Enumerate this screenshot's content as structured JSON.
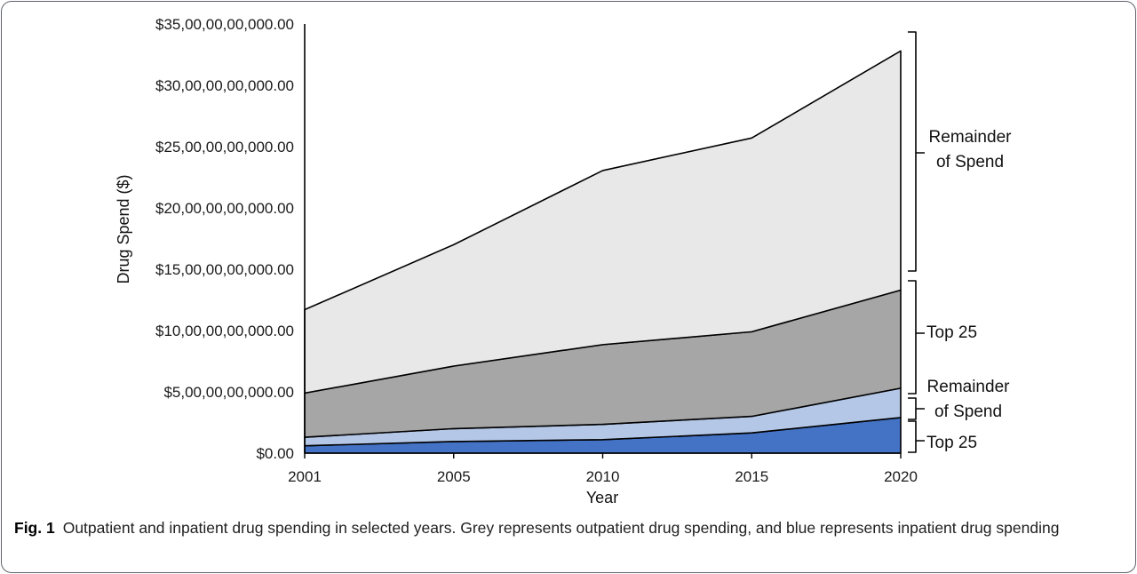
{
  "figure": {
    "caption_bold": "Fig. 1",
    "caption_text": "Outpatient and inpatient drug spending in selected years. Grey represents outpatient drug spending, and blue represents inpatient drug spending"
  },
  "chart_data": {
    "type": "area",
    "stacked": true,
    "title": "",
    "xlabel": "Year",
    "ylabel": "Drug Spend ($)",
    "categories": [
      "2001",
      "2005",
      "2010",
      "2015",
      "2020"
    ],
    "x_axis_style": "categorical, equally spaced",
    "values_unit": "billions of dollars (labels shown with Indian digit grouping)",
    "ylim": [
      0,
      35
    ],
    "ytick_step_billions": 5,
    "grid": false,
    "legend_position": "right-side brackets",
    "yticks": [
      "$0.00",
      "$5,00,00,00,000.00",
      "$10,00,00,00,000.00",
      "$15,00,00,00,000.00",
      "$20,00,00,00,000.00",
      "$25,00,00,00,000.00",
      "$30,00,00,00,000.00",
      "$35,00,00,00,000.00"
    ],
    "series": [
      {
        "name": "Top 25",
        "group": "inpatient",
        "color": "#4472c4",
        "values": [
          0.6,
          0.95,
          1.1,
          1.65,
          2.9
        ]
      },
      {
        "name": "Remainder of Spend",
        "group": "inpatient",
        "color": "#b4c7e7",
        "values": [
          0.7,
          1.05,
          1.25,
          1.35,
          2.4
        ]
      },
      {
        "name": "Top 25",
        "group": "outpatient",
        "color": "#a6a6a6",
        "values": [
          3.6,
          5.1,
          6.5,
          6.9,
          8.0
        ]
      },
      {
        "name": "Remainder of Spend",
        "group": "outpatient",
        "color": "#e8e8e8",
        "values": [
          6.8,
          9.9,
          14.2,
          15.8,
          19.5
        ]
      }
    ],
    "annotations": [
      {
        "lines": [
          "Remainder",
          "of Spend"
        ],
        "target": "outpatient remainder area"
      },
      {
        "lines": [
          "Top 25"
        ],
        "target": "outpatient top 25 area"
      },
      {
        "lines": [
          "Remainder",
          "of Spend"
        ],
        "target": "inpatient remainder area"
      },
      {
        "lines": [
          "Top 25"
        ],
        "target": "inpatient top 25 area"
      }
    ]
  }
}
